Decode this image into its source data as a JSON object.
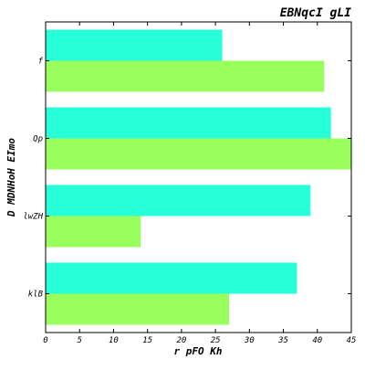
{
  "chart_data": {
    "type": "bar",
    "orientation": "horizontal",
    "title": "EBNqcI gLI",
    "xlabel": "r pFO Kh",
    "ylabel": "D MDNHoH EImo",
    "categories": [
      "f",
      "Qp",
      "lwZH",
      "klB"
    ],
    "series": [
      {
        "color": "#27ffd8",
        "values": [
          26,
          42,
          39,
          37
        ]
      },
      {
        "color": "#99ff5c",
        "values": [
          41,
          45,
          14,
          27
        ]
      }
    ],
    "xlim": [
      0,
      45
    ],
    "xticks": [
      0,
      5,
      10,
      15,
      20,
      25,
      30,
      35,
      40,
      45
    ],
    "grid": false,
    "legend": "none"
  }
}
